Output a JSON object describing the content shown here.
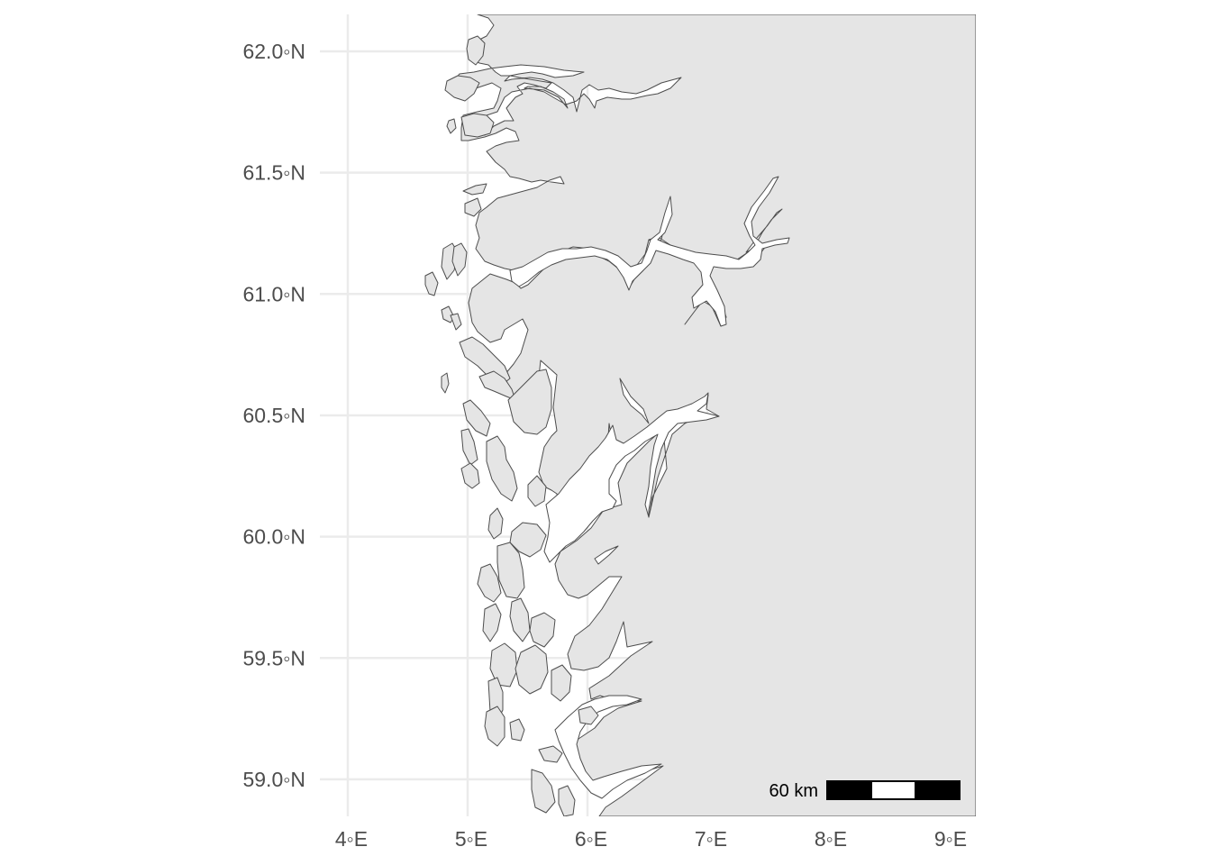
{
  "map": {
    "type": "coastline map",
    "region_lon_range": [
      3.8,
      9.2
    ],
    "region_lat_range": [
      58.85,
      62.15
    ],
    "grid": true,
    "land_color": "#e5e5e5",
    "water_color": "#ffffff",
    "coast_stroke_color": "#4d4d4d",
    "grid_color": "#ebebeb",
    "lat_ticks": [
      {
        "value": 62.0,
        "label": "62.0◦N"
      },
      {
        "value": 61.5,
        "label": "61.5◦N"
      },
      {
        "value": 61.0,
        "label": "61.0◦N"
      },
      {
        "value": 60.5,
        "label": "60.5◦N"
      },
      {
        "value": 60.0,
        "label": "60.0◦N"
      },
      {
        "value": 59.5,
        "label": "59.5◦N"
      },
      {
        "value": 59.0,
        "label": "59.0◦N"
      }
    ],
    "lon_ticks": [
      {
        "value": 4,
        "label": "4◦E"
      },
      {
        "value": 5,
        "label": "5◦E"
      },
      {
        "value": 6,
        "label": "6◦E"
      },
      {
        "value": 7,
        "label": "7◦E"
      },
      {
        "value": 8,
        "label": "8◦E"
      },
      {
        "value": 9,
        "label": "9◦E"
      }
    ],
    "scale_bar": {
      "label": "60 km",
      "segments": 3,
      "placement": "bottom-right",
      "colors": [
        "#000000",
        "#ffffff",
        "#000000"
      ]
    }
  }
}
